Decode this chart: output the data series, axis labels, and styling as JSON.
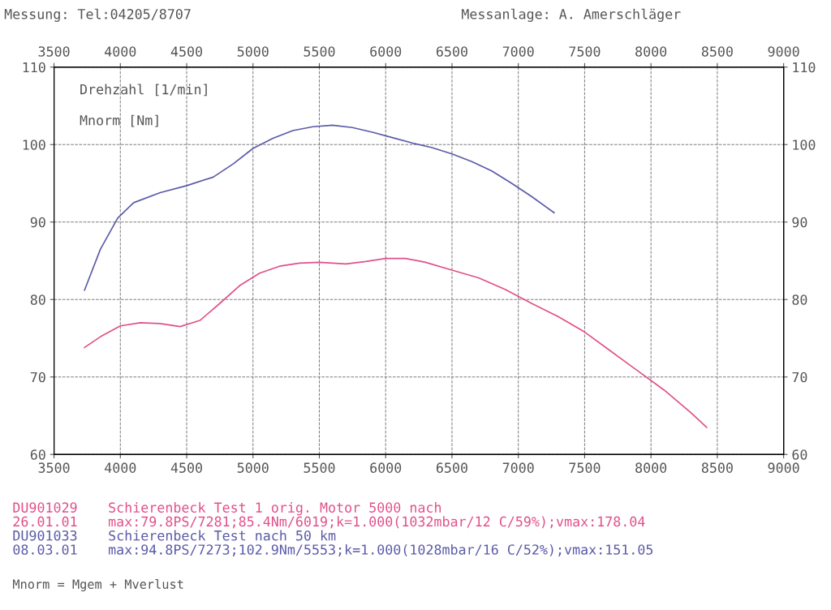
{
  "chart_data": {
    "type": "line",
    "xlim": [
      3500,
      9000
    ],
    "xticks": [
      3500,
      4000,
      4500,
      5000,
      5500,
      6000,
      6500,
      7000,
      7500,
      8000,
      8500,
      9000
    ],
    "ylim": [
      60,
      110
    ],
    "yticks": [
      60,
      70,
      80,
      90,
      100,
      110
    ],
    "grid": true,
    "marker": "none",
    "line_style": "solid",
    "legend": false,
    "x2lim": [
      3500,
      9000
    ],
    "x2ticks": [
      3500,
      4000,
      4500,
      5000,
      5500,
      6000,
      6500,
      7000,
      7500,
      8000,
      8500,
      9000
    ],
    "y2lim": [
      60,
      110
    ],
    "y2ticks": [
      60,
      70,
      80,
      90,
      100,
      110
    ],
    "annotations": [
      "Messung: Tel:04205/8707",
      "Messanlage: A. Amerschläger",
      "Drehzahl [1/min]",
      "Mnorm [Nm]",
      "Mnorm = Mgem + Mverlust",
      "Schierenbeck Test 1 orig. Motor 5000 nach",
      "26.01.01",
      "max:79.8PS/7281;85.4Nm/6019;k=1.000(1032mbar/12 C/59%);vmax:178.04",
      "Schierenbeck Test nach 50 km",
      "08.03.01",
      "max:94.8PS/7273;102.9Nm/5553;k=1.000(1028mbar/16 C/52%);vmax:151.05"
    ],
    "series": [
      {
        "name": "DU901029",
        "color": "#e0508a",
        "x": [
          3730,
          3850,
          4000,
          4150,
          4300,
          4450,
          4600,
          4750,
          4900,
          5050,
          5200,
          5350,
          5500,
          5700,
          5850,
          6000,
          6150,
          6300,
          6500,
          6700,
          6900,
          7100,
          7300,
          7500,
          7700,
          7900,
          8100,
          8300,
          8420
        ],
        "values": [
          73.8,
          75.2,
          76.6,
          77.0,
          76.9,
          76.5,
          77.3,
          79.5,
          81.8,
          83.4,
          84.3,
          84.7,
          84.8,
          84.6,
          84.9,
          85.3,
          85.3,
          84.8,
          83.8,
          82.8,
          81.3,
          79.5,
          77.8,
          75.8,
          73.3,
          70.8,
          68.3,
          65.4,
          63.5
        ]
      },
      {
        "name": "DU901033",
        "color": "#5a5aa8",
        "x": [
          3730,
          3850,
          3980,
          4100,
          4300,
          4500,
          4700,
          4850,
          5000,
          5150,
          5300,
          5450,
          5600,
          5750,
          5900,
          6050,
          6200,
          6350,
          6500,
          6650,
          6800,
          6950,
          7100,
          7270
        ],
        "values": [
          81.2,
          86.5,
          90.5,
          92.5,
          93.8,
          94.7,
          95.8,
          97.5,
          99.5,
          100.8,
          101.8,
          102.3,
          102.5,
          102.2,
          101.6,
          100.9,
          100.2,
          99.6,
          98.8,
          97.8,
          96.6,
          95.0,
          93.3,
          91.2
        ]
      }
    ]
  }
}
